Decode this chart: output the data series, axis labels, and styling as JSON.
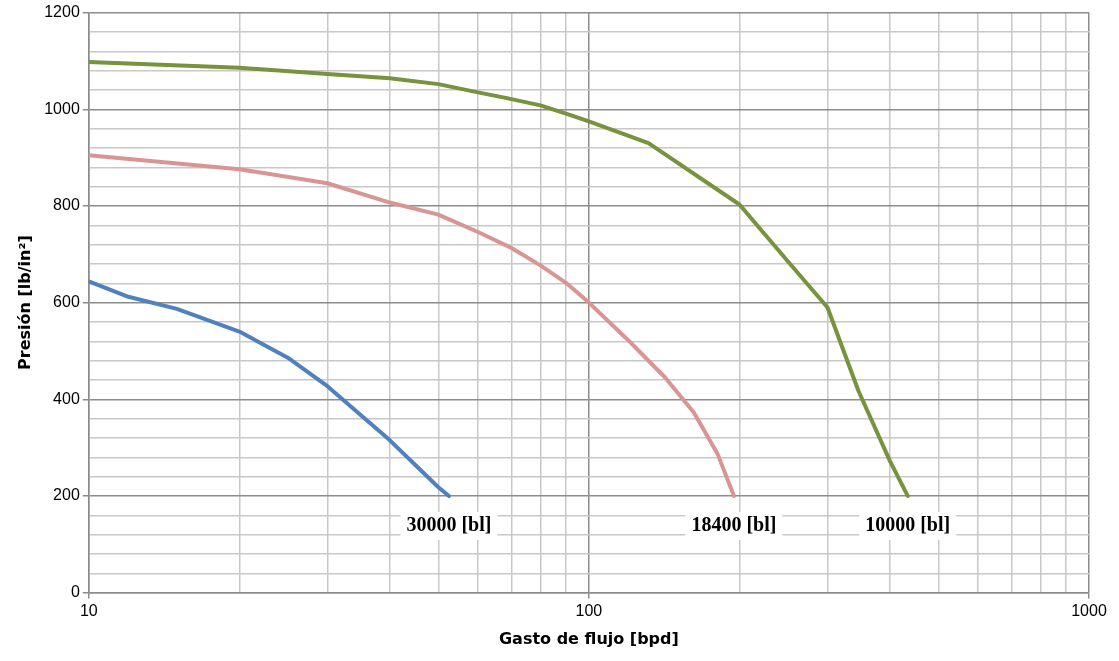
{
  "chart_data": {
    "type": "line",
    "xlabel": "Gasto de flujo [bpd]",
    "ylabel": "Presión [lb/in²]",
    "log": "x",
    "grid": true,
    "legend": false,
    "marker": "none",
    "line_style": "solid",
    "xlim": [
      10,
      1000
    ],
    "xticks": [
      10,
      {
        "value": 20,
        "label": null
      },
      {
        "value": 30,
        "label": null
      },
      {
        "value": 40,
        "label": null
      },
      {
        "value": 50,
        "label": null
      },
      {
        "value": 60,
        "label": null
      },
      {
        "value": 70,
        "label": null
      },
      {
        "value": 80,
        "label": null
      },
      {
        "value": 90,
        "label": null
      },
      100,
      {
        "value": 200,
        "label": null
      },
      {
        "value": 300,
        "label": null
      },
      {
        "value": 400,
        "label": null
      },
      {
        "value": 500,
        "label": null
      },
      {
        "value": 600,
        "label": null
      },
      {
        "value": 700,
        "label": null
      },
      {
        "value": 800,
        "label": null
      },
      {
        "value": 900,
        "label": null
      },
      1000
    ],
    "ylim": [
      0,
      1200
    ],
    "yticks": [
      0,
      {
        "value": 40,
        "label": null
      },
      {
        "value": 80,
        "label": null
      },
      {
        "value": 120,
        "label": null
      },
      {
        "value": 160,
        "label": null
      },
      200,
      {
        "value": 240,
        "label": null
      },
      {
        "value": 280,
        "label": null
      },
      {
        "value": 320,
        "label": null
      },
      {
        "value": 360,
        "label": null
      },
      400,
      {
        "value": 440,
        "label": null
      },
      {
        "value": 480,
        "label": null
      },
      {
        "value": 520,
        "label": null
      },
      {
        "value": 560,
        "label": null
      },
      600,
      {
        "value": 640,
        "label": null
      },
      {
        "value": 680,
        "label": null
      },
      {
        "value": 720,
        "label": null
      },
      {
        "value": 760,
        "label": null
      },
      800,
      {
        "value": 840,
        "label": null
      },
      {
        "value": 880,
        "label": null
      },
      {
        "value": 920,
        "label": null
      },
      {
        "value": 960,
        "label": null
      },
      1000,
      {
        "value": 1040,
        "label": null
      },
      {
        "value": 1080,
        "label": null
      },
      {
        "value": 1120,
        "label": null
      },
      {
        "value": 1160,
        "label": null
      },
      1200
    ],
    "series": [
      {
        "color": "#4f81bd",
        "x": [
          10,
          12,
          15,
          20,
          25,
          30,
          40,
          50,
          52.5
        ],
        "values": [
          644,
          612,
          587,
          540,
          486,
          427,
          315,
          218,
          200
        ]
      },
      {
        "color": "#d99594",
        "x": [
          10,
          20,
          30,
          40,
          50,
          60,
          70,
          80,
          90,
          100,
          121,
          142,
          162,
          181,
          195
        ],
        "values": [
          905,
          876,
          847,
          807,
          782,
          746,
          713,
          677,
          641,
          600,
          518,
          445,
          373,
          286,
          200
        ]
      },
      {
        "color": "#77933c",
        "x": [
          10,
          20,
          30,
          40,
          50,
          60,
          70,
          80,
          90,
          100,
          131.6,
          200,
          250.6,
          300,
          346,
          400,
          434
        ],
        "values": [
          1098,
          1086,
          1073,
          1064,
          1052,
          1035,
          1021,
          1008,
          991,
          975,
          930,
          803,
          684,
          590,
          417,
          272,
          200
        ]
      }
    ],
    "annotations": [
      {
        "text": "30000 [bl]",
        "x": 52.5,
        "y": 200
      },
      {
        "text": "18400 [bl]",
        "x": 195,
        "y": 200
      },
      {
        "text": "10000 [bl]",
        "x": 434,
        "y": 200
      }
    ]
  }
}
